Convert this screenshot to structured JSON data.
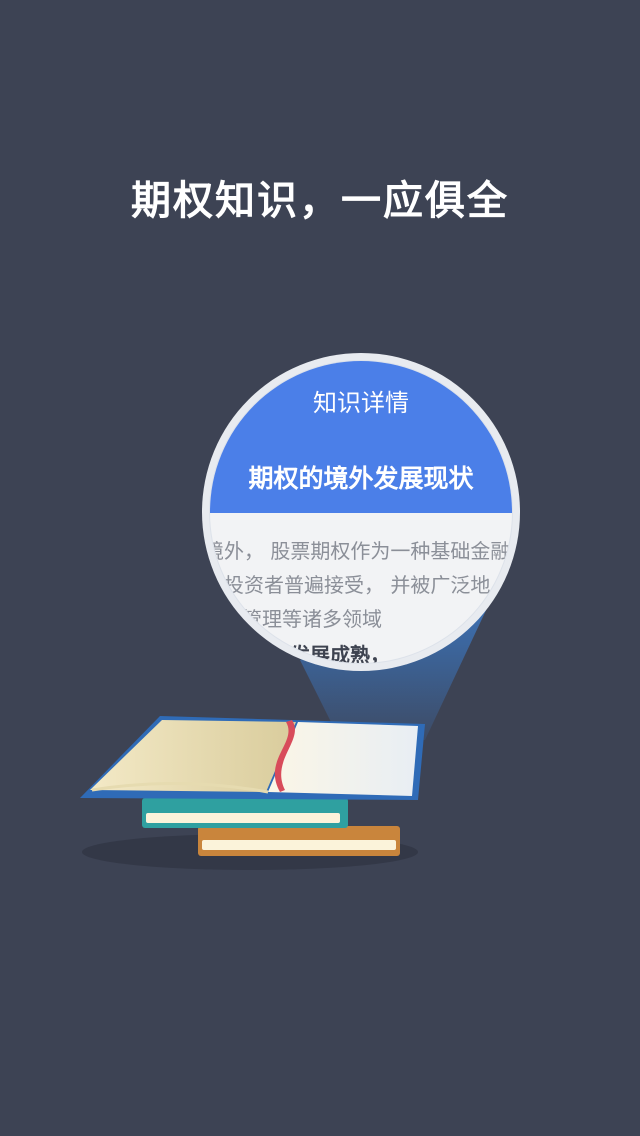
{
  "screen": {
    "headline": "期权知识，一应俱全"
  },
  "lens": {
    "nav_title": "知识详情",
    "article_title": "期权的境外发展现状",
    "body_lines": [
      "境外， 股票期权作为一种基础金融",
      "投资者普遍接受， 并被广泛地",
      "管理等诸多领域",
      "发展成熟，"
    ]
  },
  "colors": {
    "background": "#3d4354",
    "accent_blue": "#4b7fe8",
    "lens_rim": "#e8ebf0",
    "book_cover_blue": "#2f6bb7",
    "book_teal": "#2fa0a0",
    "book_orange": "#c9853c",
    "bookmark": "#d84b5a"
  }
}
